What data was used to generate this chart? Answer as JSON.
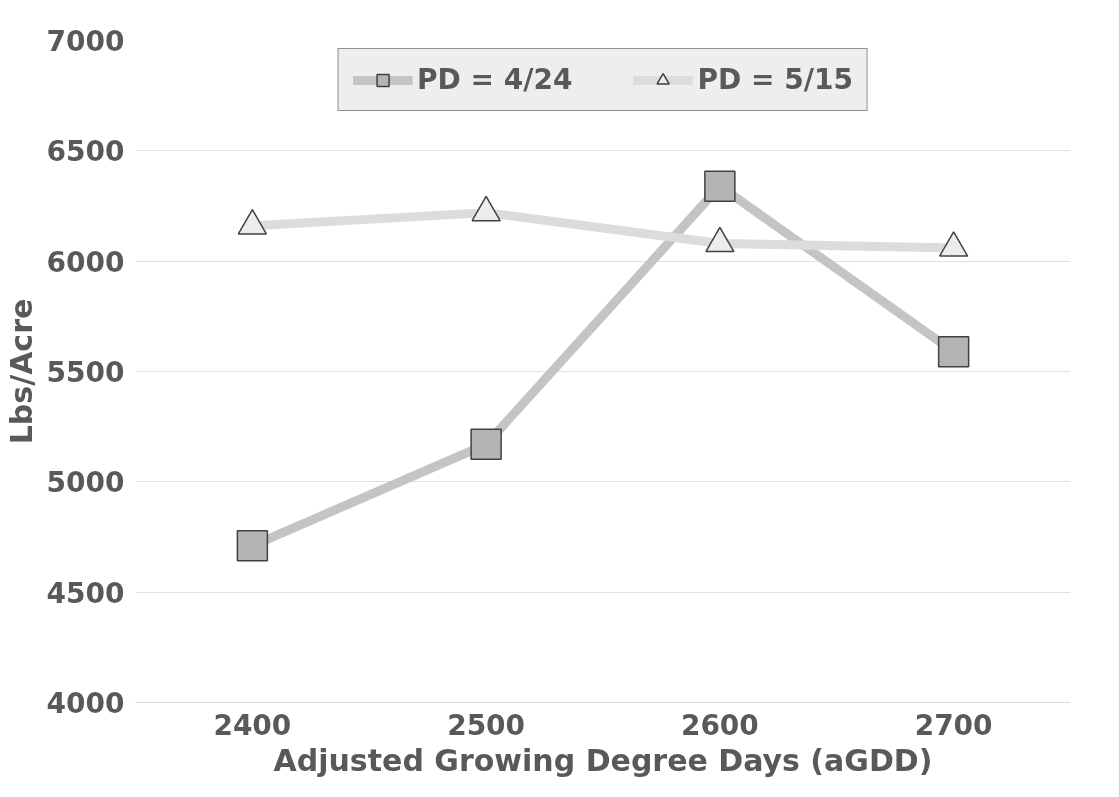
{
  "chart_data": {
    "type": "line",
    "xlabel": "Adjusted Growing Degree Days (aGDD)",
    "ylabel": "Lbs/Acre",
    "categories": [
      "2400",
      "2500",
      "2600",
      "2700"
    ],
    "series": [
      {
        "name": "PD = 4/24",
        "color": "#c4c4c4",
        "marker": "square",
        "values": [
          4710,
          5170,
          6340,
          5590
        ]
      },
      {
        "name": "PD = 5/15",
        "color": "#dcdcdc",
        "marker": "triangle",
        "values": [
          6160,
          6220,
          6080,
          6060
        ]
      }
    ],
    "ylim": [
      4000,
      7000
    ],
    "yticks": [
      4000,
      4500,
      5000,
      5500,
      6000,
      6500,
      7000
    ],
    "grid": "y",
    "legend": "top",
    "line_style": "solid"
  }
}
